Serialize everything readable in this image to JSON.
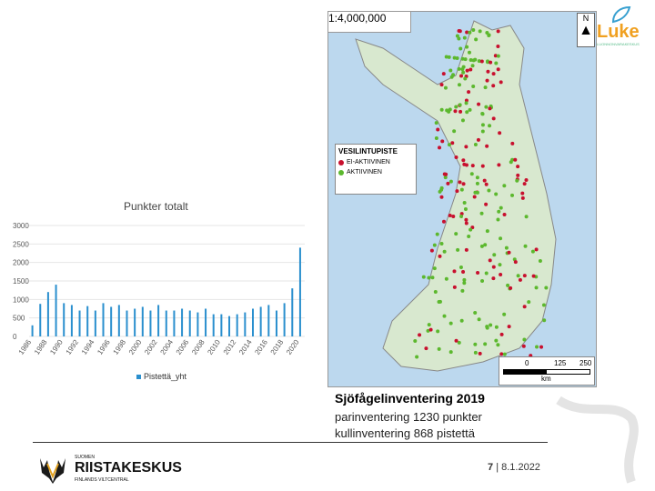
{
  "chart_data": {
    "type": "bar",
    "title": "Punkter totalt",
    "series_name": "Pistettä_yht",
    "ylim": [
      0,
      3000
    ],
    "yticks": [
      0,
      500,
      1000,
      1500,
      2000,
      2500,
      3000
    ],
    "x": [
      1986,
      1987,
      1988,
      1989,
      1990,
      1991,
      1992,
      1993,
      1994,
      1995,
      1996,
      1997,
      1998,
      1999,
      2000,
      2001,
      2002,
      2003,
      2004,
      2005,
      2006,
      2007,
      2008,
      2009,
      2010,
      2011,
      2012,
      2013,
      2014,
      2015,
      2016,
      2017,
      2018,
      2019,
      2020
    ],
    "values": [
      300,
      880,
      1200,
      1400,
      900,
      850,
      700,
      820,
      700,
      900,
      800,
      850,
      700,
      750,
      800,
      700,
      850,
      700,
      700,
      750,
      700,
      650,
      750,
      600,
      600,
      550,
      600,
      650,
      750,
      800,
      850,
      700,
      900,
      1300,
      2400
    ],
    "xtick_labels": [
      "1986",
      "1988",
      "1990",
      "1992",
      "1994",
      "1996",
      "1998",
      "2000",
      "2002",
      "2004",
      "2006",
      "2008",
      "2010",
      "2012",
      "2014",
      "2016",
      "2018",
      "2020"
    ]
  },
  "map": {
    "scale_label": "1:4,000,000",
    "north": "N",
    "legend_title": "VESILINTUPISTE",
    "legend_items": [
      {
        "label": "EI-AKTIIVINEN",
        "color": "#c8102e"
      },
      {
        "label": "AKTIIVINEN",
        "color": "#5cb82e"
      }
    ],
    "scalebar_labels": [
      "0",
      "125",
      "250"
    ],
    "scalebar_unit": "km"
  },
  "luke": {
    "name": "Luke",
    "tagline": "LUONNONVARAKESKUS"
  },
  "info": {
    "title": "Sjöfågelinventering 2019",
    "line1": "parinventering 1230 punkter",
    "line2": "kullinventering 868 pistettä"
  },
  "footer": {
    "page_number": "7",
    "separator": "|",
    "date": "8.1.2022"
  },
  "logo": {
    "name": "RIISTAKESKUS",
    "small_top": "SUOMEN",
    "small_bottom": "FINLANDS VILTCENTRAL"
  },
  "colors": {
    "bar": "#2a8fce",
    "accent": "#f0a020"
  }
}
